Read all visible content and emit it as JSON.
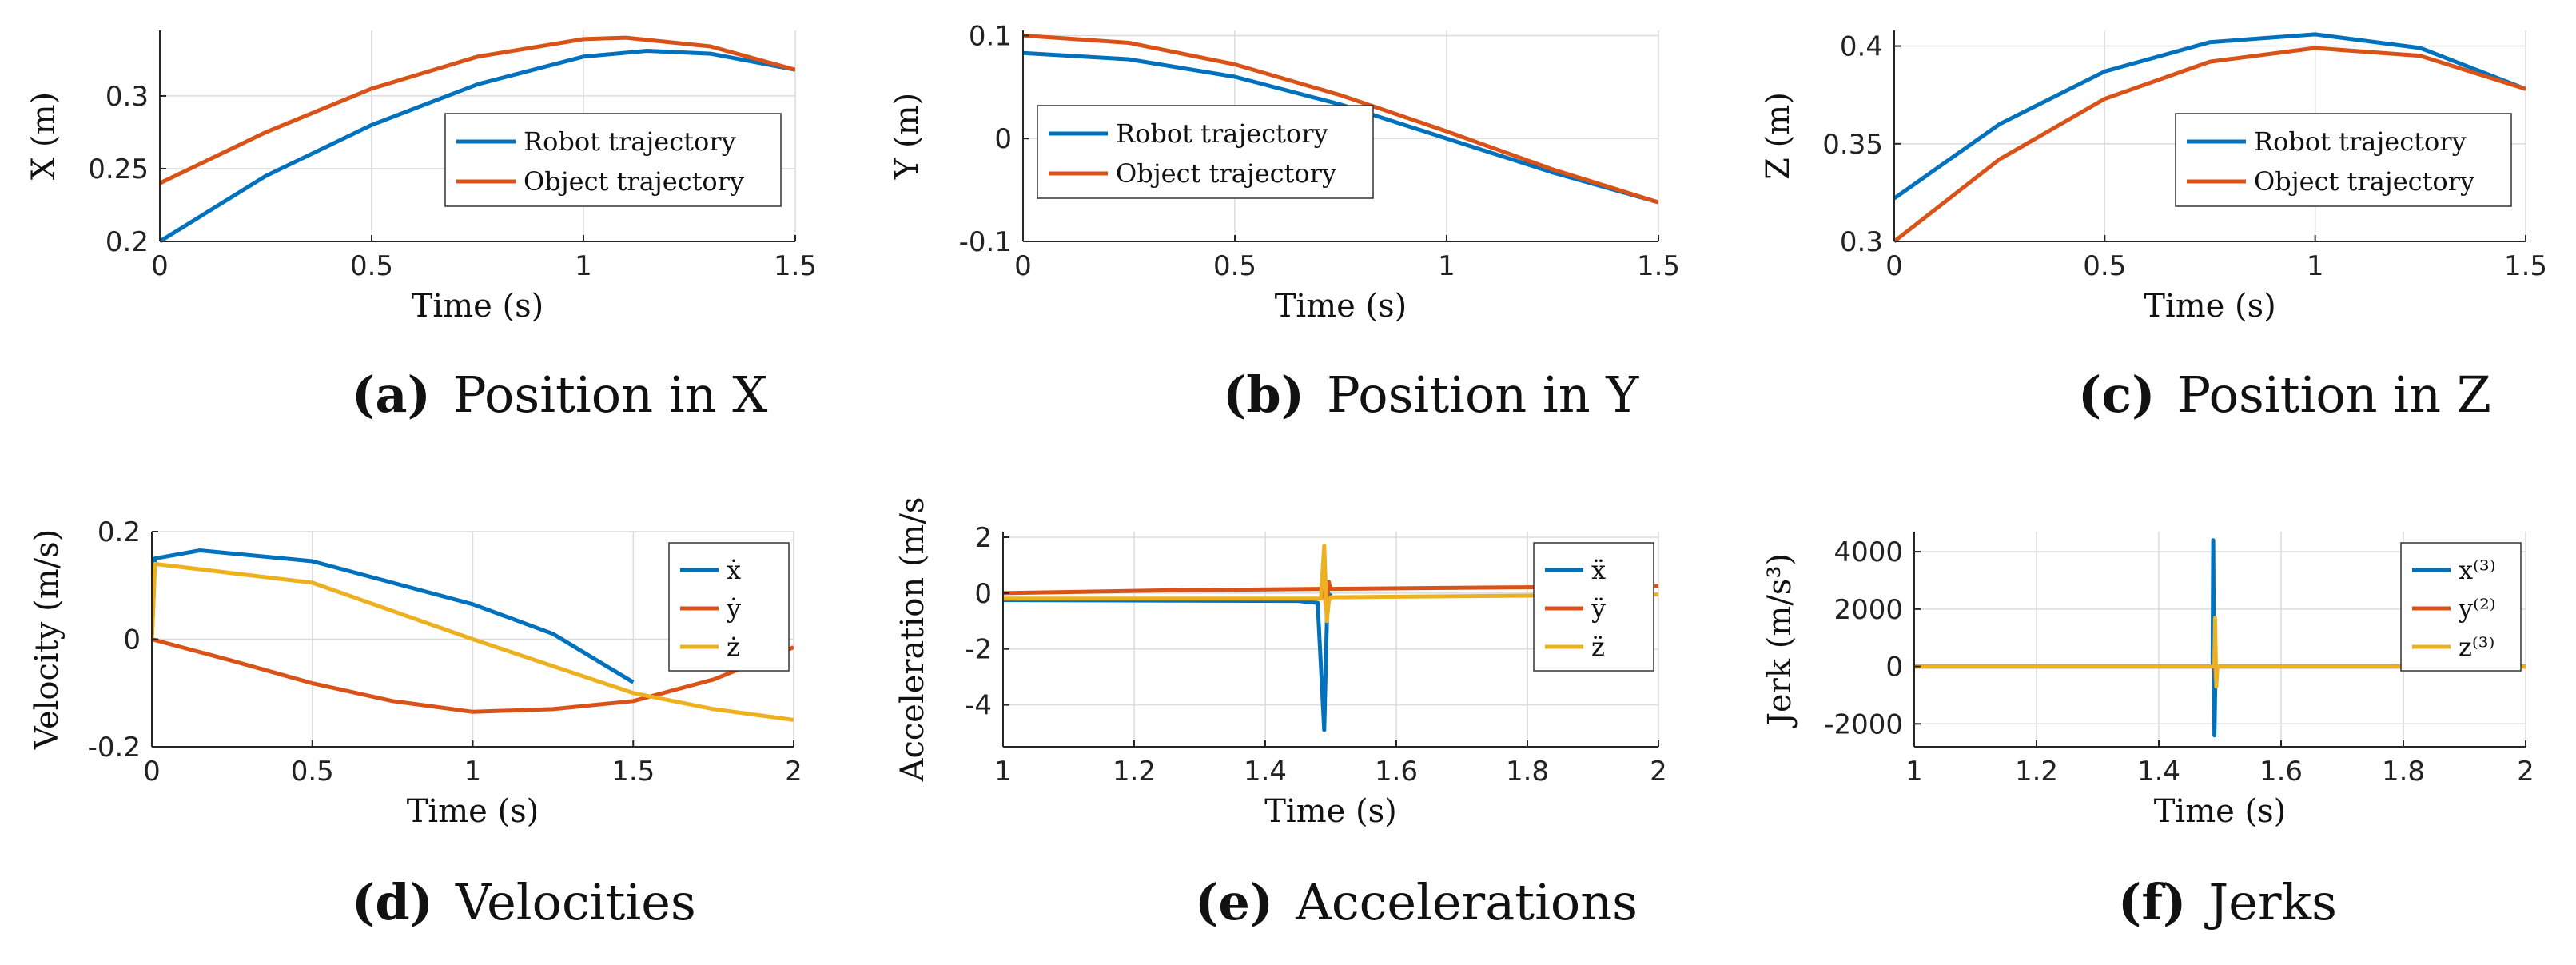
{
  "colors": {
    "blue": "#0072BD",
    "orange": "#D95319",
    "yellow": "#EDB120",
    "grid": "#dcdcdc",
    "axis": "#262626"
  },
  "chart_data": [
    {
      "id": "a",
      "type": "line",
      "caption": {
        "letter": "(a)",
        "text": "Position in X"
      },
      "xlabel": "Time (s)",
      "ylabel": "X (m)",
      "xlim": [
        0,
        1.5
      ],
      "ylim": [
        0.2,
        0.345
      ],
      "xticks": [
        "0",
        "0.5",
        "1",
        "1.5"
      ],
      "xtick_vals": [
        0,
        0.5,
        1,
        1.5
      ],
      "yticks": [
        "0.2",
        "0.25",
        "0.3"
      ],
      "ytick_vals": [
        0.2,
        0.25,
        0.3
      ],
      "legend_loc": "center-right",
      "series": [
        {
          "name": "Robot trajectory",
          "color": "#0072BD",
          "x": [
            0,
            0.25,
            0.5,
            0.75,
            1.0,
            1.15,
            1.3,
            1.5
          ],
          "y": [
            0.2,
            0.245,
            0.28,
            0.308,
            0.327,
            0.331,
            0.329,
            0.318
          ]
        },
        {
          "name": "Object trajectory",
          "color": "#D95319",
          "x": [
            0,
            0.25,
            0.5,
            0.75,
            1.0,
            1.1,
            1.3,
            1.5
          ],
          "y": [
            0.24,
            0.275,
            0.305,
            0.327,
            0.339,
            0.34,
            0.334,
            0.318
          ]
        }
      ]
    },
    {
      "id": "b",
      "type": "line",
      "caption": {
        "letter": "(b)",
        "text": "Position in Y"
      },
      "xlabel": "Time (s)",
      "ylabel": "Y (m)",
      "xlim": [
        0,
        1.5
      ],
      "ylim": [
        -0.1,
        0.105
      ],
      "xticks": [
        "0",
        "0.5",
        "1",
        "1.5"
      ],
      "xtick_vals": [
        0,
        0.5,
        1,
        1.5
      ],
      "yticks": [
        "-0.1",
        "0",
        "0.1"
      ],
      "ytick_vals": [
        -0.1,
        0,
        0.1
      ],
      "legend_loc": "center-left",
      "series": [
        {
          "name": "Robot trajectory",
          "color": "#0072BD",
          "x": [
            0,
            0.25,
            0.5,
            0.75,
            1.0,
            1.25,
            1.5
          ],
          "y": [
            0.083,
            0.077,
            0.06,
            0.033,
            0.0,
            -0.033,
            -0.062
          ]
        },
        {
          "name": "Object trajectory",
          "color": "#D95319",
          "x": [
            0,
            0.25,
            0.5,
            0.75,
            1.0,
            1.25,
            1.5
          ],
          "y": [
            0.1,
            0.093,
            0.072,
            0.042,
            0.007,
            -0.03,
            -0.062
          ]
        }
      ]
    },
    {
      "id": "c",
      "type": "line",
      "caption": {
        "letter": "(c)",
        "text": "Position in Z"
      },
      "xlabel": "Time (s)",
      "ylabel": "Z (m)",
      "xlim": [
        0,
        1.5
      ],
      "ylim": [
        0.3,
        0.408
      ],
      "xticks": [
        "0",
        "0.5",
        "1",
        "1.5"
      ],
      "xtick_vals": [
        0,
        0.5,
        1,
        1.5
      ],
      "yticks": [
        "0.3",
        "0.35",
        "0.4"
      ],
      "ytick_vals": [
        0.3,
        0.35,
        0.4
      ],
      "legend_loc": "center-right",
      "series": [
        {
          "name": "Robot trajectory",
          "color": "#0072BD",
          "x": [
            0,
            0.25,
            0.5,
            0.75,
            1.0,
            1.25,
            1.5
          ],
          "y": [
            0.322,
            0.36,
            0.387,
            0.402,
            0.406,
            0.399,
            0.378
          ]
        },
        {
          "name": "Object trajectory",
          "color": "#D95319",
          "x": [
            0,
            0.25,
            0.5,
            0.75,
            1.0,
            1.25,
            1.5
          ],
          "y": [
            0.3,
            0.342,
            0.373,
            0.392,
            0.399,
            0.395,
            0.378
          ]
        }
      ]
    },
    {
      "id": "d",
      "type": "line",
      "caption": {
        "letter": "(d)",
        "text": "Velocities"
      },
      "xlabel": "Time (s)",
      "ylabel": "Velocity (m/s)",
      "xlim": [
        0,
        2
      ],
      "ylim": [
        -0.2,
        0.2
      ],
      "xticks": [
        "0",
        "0.5",
        "1",
        "1.5",
        "2"
      ],
      "xtick_vals": [
        0,
        0.5,
        1,
        1.5,
        2
      ],
      "yticks": [
        "-0.2",
        "0",
        "0.2"
      ],
      "ytick_vals": [
        -0.2,
        0,
        0.2
      ],
      "legend_loc": "top-right",
      "series": [
        {
          "name": "ẋ",
          "color": "#0072BD",
          "x": [
            0,
            0.01,
            0.15,
            0.5,
            1.0,
            1.25,
            1.5
          ],
          "y": [
            0.0,
            0.15,
            0.165,
            0.145,
            0.065,
            0.01,
            -0.08
          ]
        },
        {
          "name": "ẏ",
          "color": "#D95319",
          "x": [
            0,
            0.25,
            0.5,
            0.75,
            1.0,
            1.25,
            1.5,
            1.75,
            2.0
          ],
          "y": [
            0.0,
            -0.04,
            -0.082,
            -0.115,
            -0.135,
            -0.13,
            -0.115,
            -0.075,
            -0.015
          ]
        },
        {
          "name": "ż",
          "color": "#EDB120",
          "x": [
            0,
            0.01,
            0.5,
            1.0,
            1.5,
            1.75,
            2.0
          ],
          "y": [
            0.0,
            0.14,
            0.105,
            0.0,
            -0.1,
            -0.13,
            -0.15
          ]
        }
      ]
    },
    {
      "id": "e",
      "type": "line",
      "caption": {
        "letter": "(e)",
        "text": "Accelerations"
      },
      "xlabel": "Time (s)",
      "ylabel": "Acceleration (m/s",
      "xlim": [
        1,
        2
      ],
      "ylim": [
        -5.5,
        2.2
      ],
      "xticks": [
        "1",
        "1.2",
        "1.4",
        "1.6",
        "1.8",
        "2"
      ],
      "xtick_vals": [
        1,
        1.2,
        1.4,
        1.6,
        1.8,
        2
      ],
      "yticks": [
        "-4",
        "-2",
        "0",
        "2"
      ],
      "ytick_vals": [
        -4,
        -2,
        0,
        2
      ],
      "legend_loc": "top-right",
      "series": [
        {
          "name": "ẍ",
          "color": "#0072BD",
          "x": [
            1.0,
            1.45,
            1.48,
            1.49,
            1.495,
            1.5
          ],
          "y": [
            -0.25,
            -0.28,
            -0.35,
            -4.9,
            -0.2,
            0.0
          ]
        },
        {
          "name": "ÿ",
          "color": "#D95319",
          "x": [
            1.0,
            1.25,
            1.49,
            1.493,
            1.497,
            1.5,
            1.75,
            2.0
          ],
          "y": [
            0.0,
            0.1,
            0.15,
            -0.6,
            0.4,
            0.15,
            0.2,
            0.25
          ]
        },
        {
          "name": "z̈",
          "color": "#EDB120",
          "x": [
            1.0,
            1.25,
            1.485,
            1.49,
            1.494,
            1.497,
            1.5,
            1.75,
            2.0
          ],
          "y": [
            -0.2,
            -0.2,
            -0.2,
            1.7,
            -1.0,
            -0.3,
            -0.15,
            -0.1,
            -0.05
          ]
        }
      ]
    },
    {
      "id": "f",
      "type": "line",
      "caption": {
        "letter": "(f)",
        "text": "Jerks"
      },
      "xlabel": "Time (s)",
      "ylabel": "Jerk (m/s³)",
      "xlim": [
        1,
        2
      ],
      "ylim": [
        -2800,
        4700
      ],
      "xticks": [
        "1",
        "1.2",
        "1.4",
        "1.6",
        "1.8",
        "2"
      ],
      "xtick_vals": [
        1,
        1.2,
        1.4,
        1.6,
        1.8,
        2
      ],
      "yticks": [
        "-2000",
        "0",
        "2000",
        "4000"
      ],
      "ytick_vals": [
        -2000,
        0,
        2000,
        4000
      ],
      "legend_loc": "top-right",
      "series": [
        {
          "name": "x⁽³⁾",
          "color": "#0072BD",
          "x": [
            1.0,
            1.488,
            1.489,
            1.491,
            1.493,
            1.5,
            2.0
          ],
          "y": [
            0,
            0,
            4400,
            -2400,
            0,
            0,
            0
          ]
        },
        {
          "name": "y⁽²⁾",
          "color": "#D95319",
          "x": [
            1.0,
            1.49,
            1.491,
            1.493,
            1.495,
            2.0
          ],
          "y": [
            0,
            0,
            600,
            -400,
            0,
            0
          ]
        },
        {
          "name": "z⁽³⁾",
          "color": "#EDB120",
          "x": [
            1.0,
            1.491,
            1.492,
            1.494,
            1.496,
            2.0
          ],
          "y": [
            0,
            0,
            1700,
            -700,
            0,
            0
          ]
        }
      ]
    }
  ]
}
